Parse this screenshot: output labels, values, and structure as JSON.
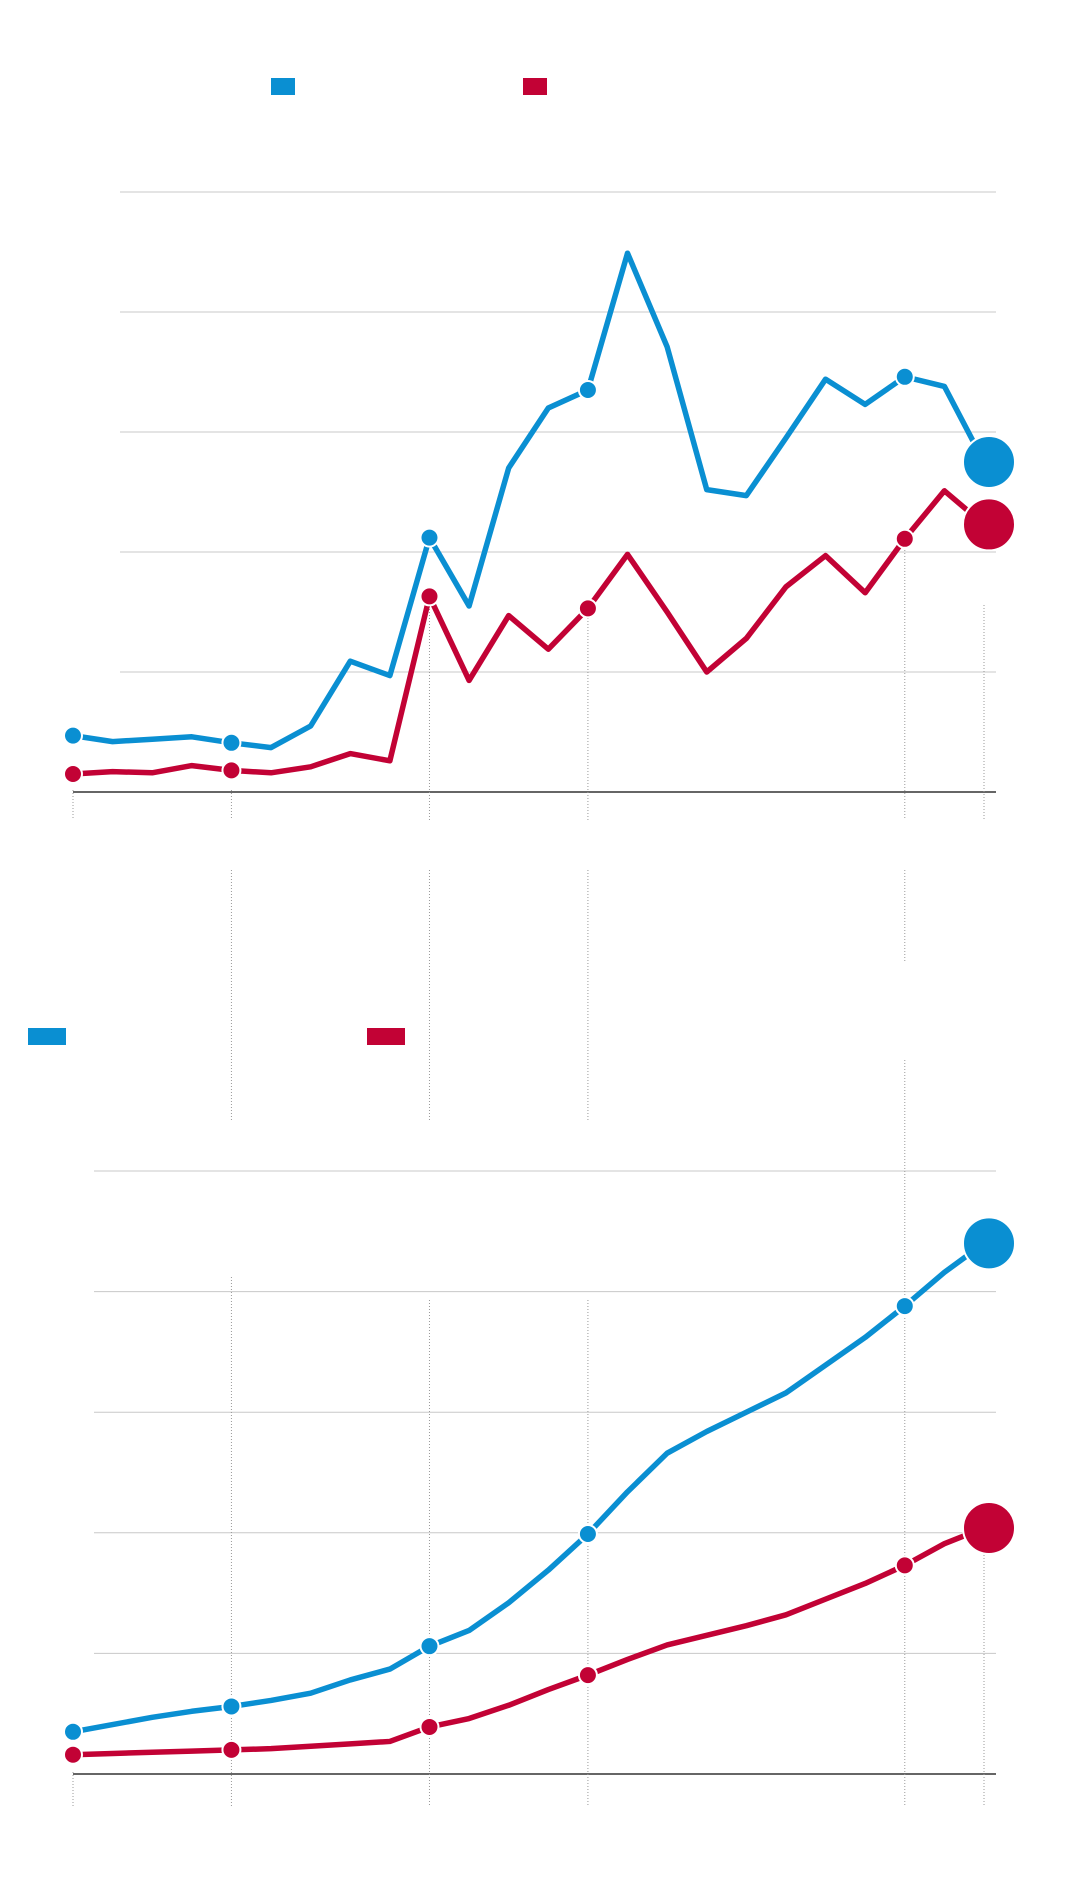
{
  "chart_data": [
    {
      "type": "line",
      "x": [
        0,
        1,
        2,
        3,
        4,
        5,
        6,
        7,
        8,
        9,
        10,
        11,
        12,
        13,
        14,
        15,
        16,
        17,
        18,
        19,
        20,
        21,
        22,
        23
      ],
      "xlim": [
        0,
        23
      ],
      "ylim": [
        0,
        5
      ],
      "yticks": [
        0,
        1,
        2,
        3,
        4,
        5
      ],
      "grid": true,
      "series": [
        {
          "color": "#0a8fd2",
          "values": [
            0.47,
            0.42,
            0.44,
            0.46,
            0.41,
            0.37,
            0.55,
            1.09,
            0.97,
            2.12,
            1.55,
            2.7,
            3.2,
            3.35,
            4.49,
            3.71,
            2.52,
            2.47,
            2.95,
            3.44,
            3.23,
            3.46,
            3.38,
            2.75
          ]
        },
        {
          "color": "#c20235",
          "values": [
            0.15,
            0.17,
            0.16,
            0.22,
            0.18,
            0.16,
            0.21,
            0.32,
            0.26,
            1.63,
            0.93,
            1.47,
            1.19,
            1.53,
            1.98,
            1.5,
            1.0,
            1.28,
            1.71,
            1.97,
            1.66,
            2.11,
            2.51,
            2.23
          ]
        }
      ]
    },
    {
      "type": "line",
      "x": [
        0,
        1,
        2,
        3,
        4,
        5,
        6,
        7,
        8,
        9,
        10,
        11,
        12,
        13,
        14,
        15,
        16,
        17,
        18,
        19,
        20,
        21,
        22,
        23
      ],
      "xlim": [
        0,
        23
      ],
      "ylim": [
        0,
        5
      ],
      "yticks": [
        0,
        1,
        2,
        3,
        4,
        5
      ],
      "grid": true,
      "series": [
        {
          "color": "#0a8fd2",
          "values": [
            0.35,
            0.41,
            0.47,
            0.52,
            0.56,
            0.61,
            0.67,
            0.78,
            0.87,
            1.06,
            1.19,
            1.42,
            1.69,
            1.99,
            2.34,
            2.66,
            2.84,
            3.0,
            3.16,
            3.39,
            3.62,
            3.88,
            4.16,
            4.4
          ]
        },
        {
          "color": "#c20235",
          "values": [
            0.16,
            0.17,
            0.18,
            0.19,
            0.2,
            0.21,
            0.23,
            0.25,
            0.27,
            0.39,
            0.46,
            0.57,
            0.7,
            0.82,
            0.95,
            1.07,
            1.15,
            1.23,
            1.32,
            1.45,
            1.58,
            1.73,
            1.91,
            2.04
          ]
        }
      ]
    }
  ]
}
